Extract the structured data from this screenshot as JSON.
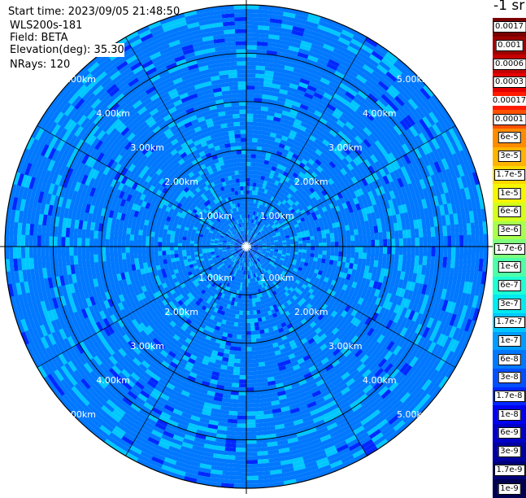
{
  "header": {
    "start_time": "Start time: 2023/09/05 21:48:50",
    "instrument": "WLS200s-181",
    "field": "Field: BETA",
    "elevation": "Elevation(deg): 35.30",
    "nrays": "NRays: 120"
  },
  "colorbar": {
    "unit": "-1 sr",
    "levels": [
      {
        "label": "0.0017",
        "color": "#7a0000"
      },
      {
        "label": "0.001",
        "color": "#9e0000"
      },
      {
        "label": "0.0006",
        "color": "#c40000"
      },
      {
        "label": "0.0003",
        "color": "#e60000"
      },
      {
        "label": "0.00017",
        "color": "#ff1a00"
      },
      {
        "label": "0.0001",
        "color": "#ff5200"
      },
      {
        "label": "6e-5",
        "color": "#ff8c00"
      },
      {
        "label": "3e-5",
        "color": "#ffb400"
      },
      {
        "label": "1.7e-5",
        "color": "#ffd800"
      },
      {
        "label": "1e-5",
        "color": "#f6f600"
      },
      {
        "label": "6e-6",
        "color": "#d4ff1e"
      },
      {
        "label": "3e-6",
        "color": "#a8ff4e"
      },
      {
        "label": "1.7e-6",
        "color": "#7cff7c"
      },
      {
        "label": "1e-6",
        "color": "#4effa8"
      },
      {
        "label": "6e-7",
        "color": "#1effd4"
      },
      {
        "label": "3e-7",
        "color": "#00eaf0"
      },
      {
        "label": "1.7e-7",
        "color": "#00c8ff"
      },
      {
        "label": "1e-7",
        "color": "#009cff"
      },
      {
        "label": "6e-8",
        "color": "#0078ff"
      },
      {
        "label": "3e-8",
        "color": "#0050ff"
      },
      {
        "label": "1.7e-8",
        "color": "#0028ff"
      },
      {
        "label": "1e-8",
        "color": "#0000f0"
      },
      {
        "label": "6e-9",
        "color": "#0000c8"
      },
      {
        "label": "3e-9",
        "color": "#0000a0"
      },
      {
        "label": "1.7e-9",
        "color": "#000078"
      },
      {
        "label": "1e-9",
        "color": "#000050"
      }
    ]
  },
  "chart_data": {
    "type": "heatmap",
    "projection": "polar-ppi",
    "field": "BETA",
    "elevation_deg": 35.3,
    "n_rays": 120,
    "range_max_km": 5.0,
    "range_rings_km": [
      1.0,
      2.0,
      3.0,
      4.0,
      5.0
    ],
    "ring_labels": [
      "1.00km",
      "2.00km",
      "3.00km",
      "4.00km",
      "5.00km"
    ],
    "spoke_angles_deg": [
      0,
      30,
      60,
      90,
      120,
      150,
      180,
      210,
      240,
      270,
      300,
      330
    ],
    "value_range": [
      1e-09,
      0.0017
    ],
    "dominant_value_range": [
      3e-08,
      1.7e-07
    ],
    "palette": {
      "dominant": "#0078ff",
      "light": "#00c8ff",
      "dark": "#0028ff"
    }
  }
}
